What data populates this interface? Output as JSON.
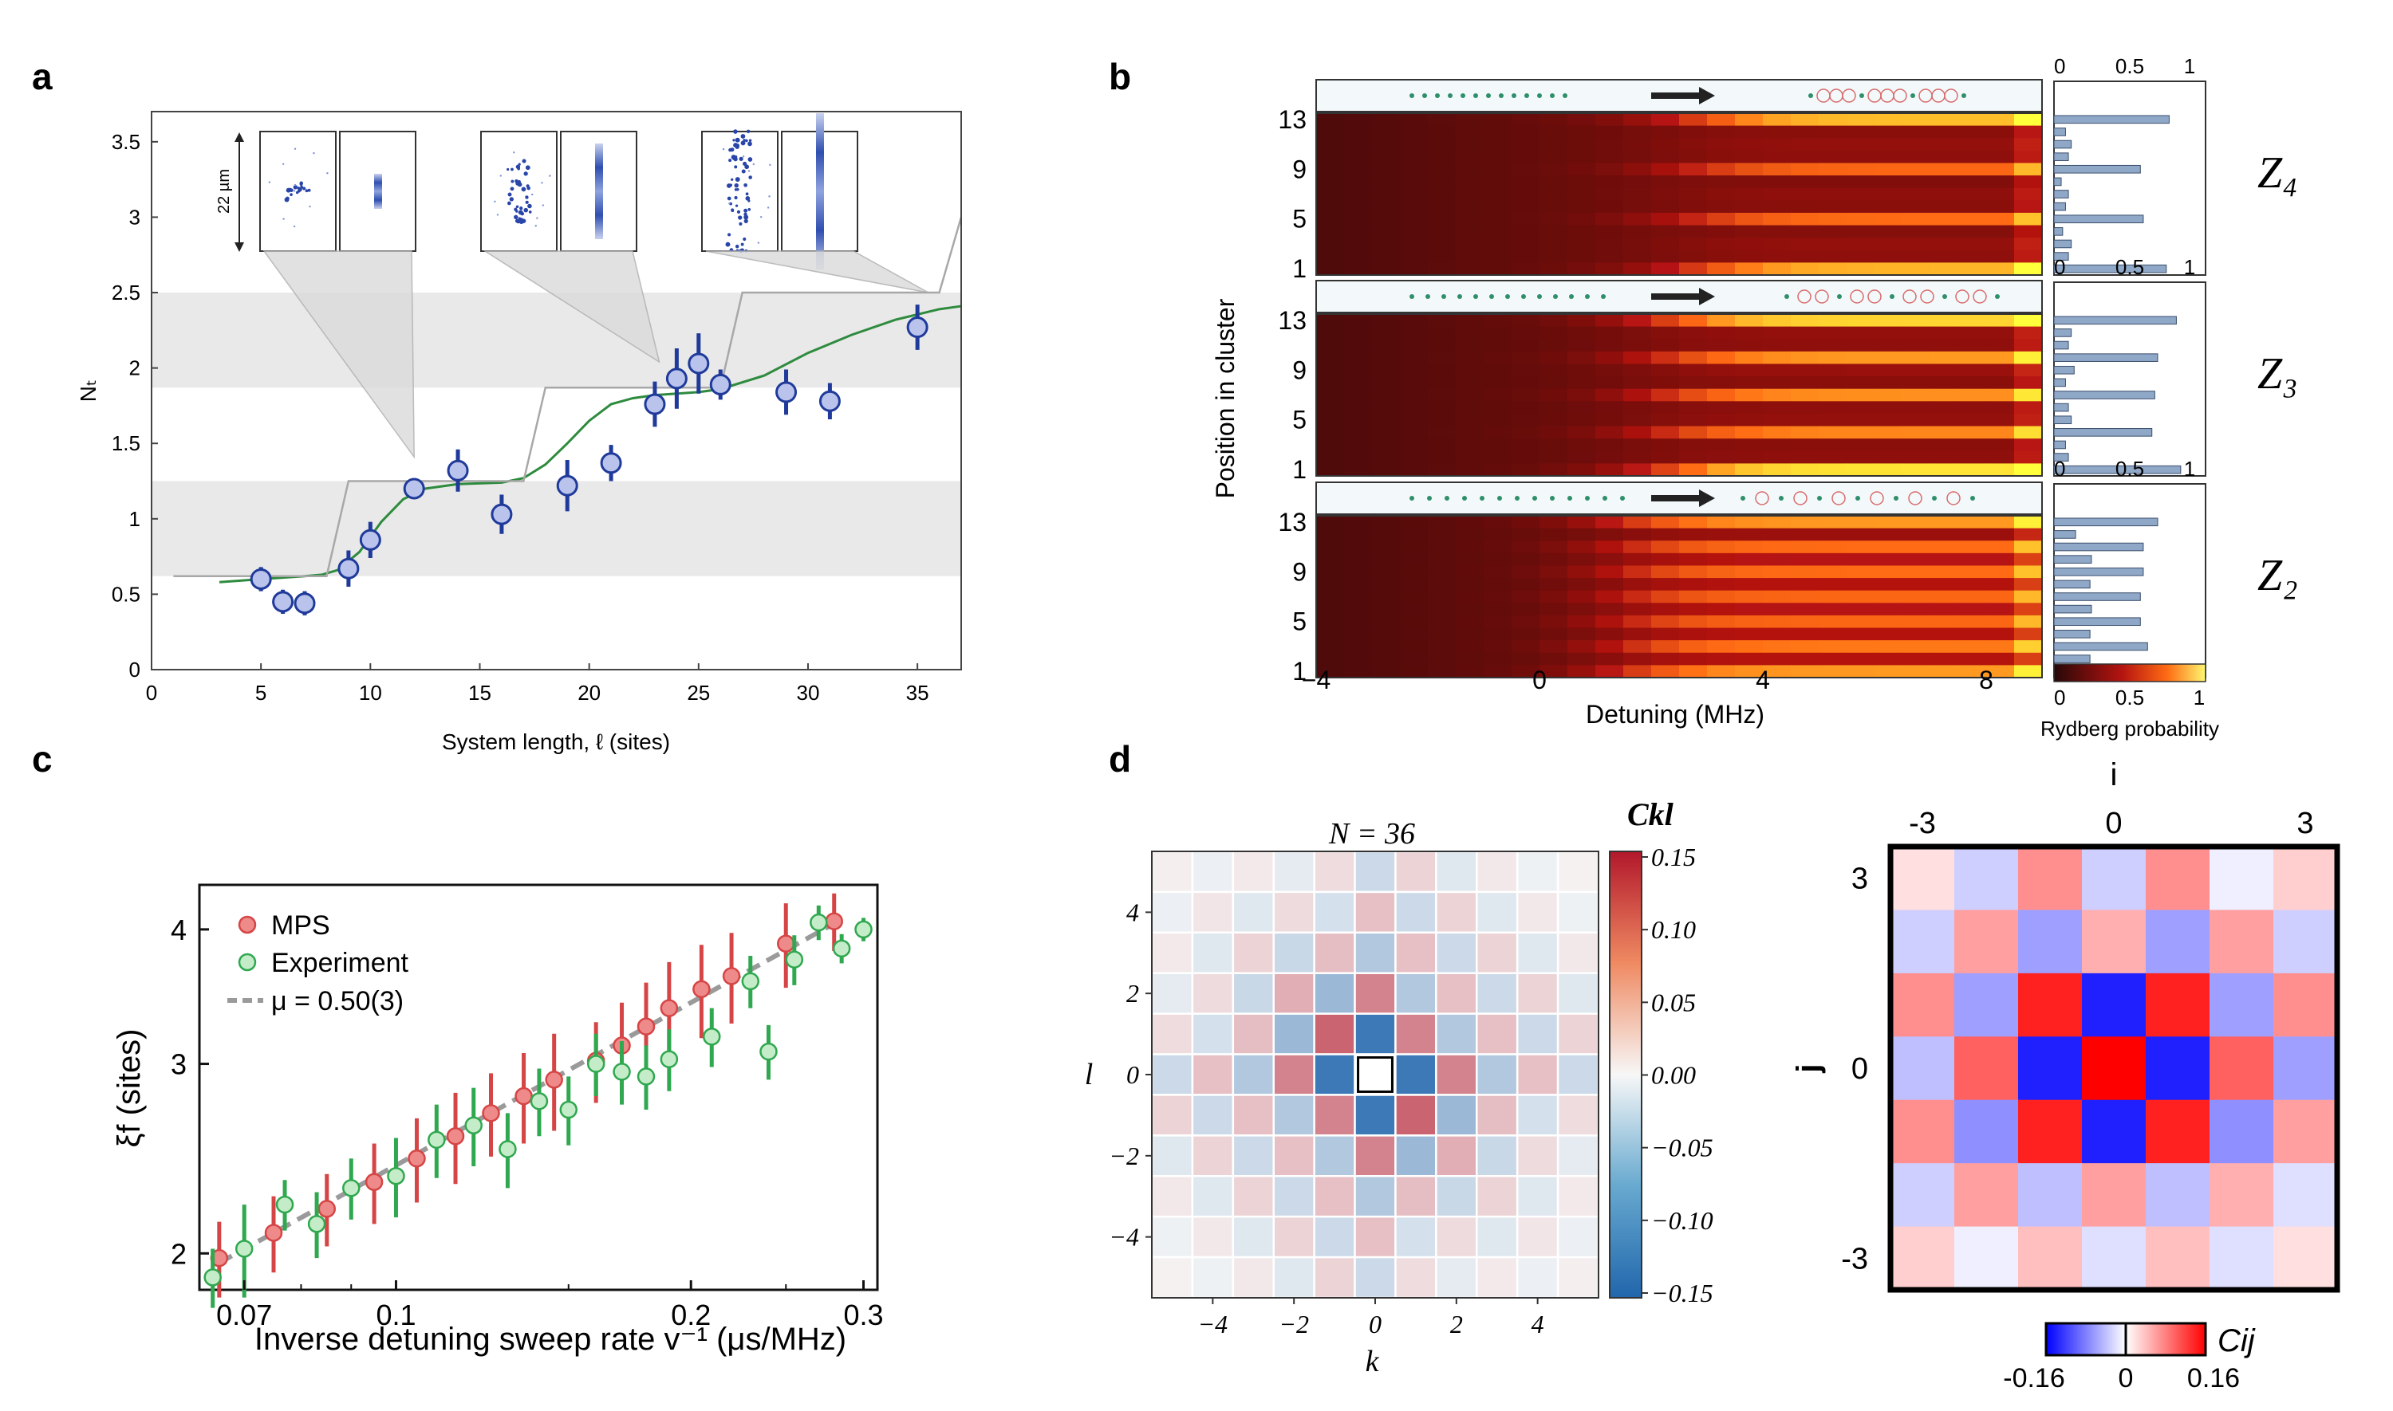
{
  "panel_labels": {
    "a": "a",
    "b": "b",
    "c": "c",
    "d": "d"
  },
  "chart_data": [
    {
      "id": "a",
      "type": "scatter",
      "xlabel": "System length, ℓ (sites)",
      "ylabel": "Nₜ",
      "xlim": [
        0,
        37
      ],
      "ylim": [
        0,
        3.7
      ],
      "xticks": [
        0,
        5,
        10,
        15,
        20,
        25,
        30,
        35
      ],
      "yticks": [
        0,
        0.5,
        1,
        1.5,
        2,
        2.5,
        3,
        3.5
      ],
      "inset_scale_label": "22 µm",
      "points": [
        {
          "x": 5,
          "y": 0.6,
          "err": 0.08
        },
        {
          "x": 6,
          "y": 0.45,
          "err": 0.08
        },
        {
          "x": 7,
          "y": 0.44,
          "err": 0.08
        },
        {
          "x": 9,
          "y": 0.67,
          "err": 0.12
        },
        {
          "x": 10,
          "y": 0.86,
          "err": 0.12
        },
        {
          "x": 12,
          "y": 1.2,
          "err": 0.05
        },
        {
          "x": 14,
          "y": 1.32,
          "err": 0.14
        },
        {
          "x": 16,
          "y": 1.03,
          "err": 0.13
        },
        {
          "x": 19,
          "y": 1.22,
          "err": 0.17
        },
        {
          "x": 21,
          "y": 1.37,
          "err": 0.12
        },
        {
          "x": 23,
          "y": 1.76,
          "err": 0.15
        },
        {
          "x": 24,
          "y": 1.93,
          "err": 0.2
        },
        {
          "x": 25,
          "y": 2.03,
          "err": 0.2
        },
        {
          "x": 26,
          "y": 1.89,
          "err": 0.1
        },
        {
          "x": 29,
          "y": 1.84,
          "err": 0.15
        },
        {
          "x": 31,
          "y": 1.78,
          "err": 0.12
        },
        {
          "x": 35,
          "y": 2.27,
          "err": 0.15
        }
      ],
      "fit_curve": {
        "x": [
          3.1,
          5,
          6,
          7,
          7.8,
          8.5,
          9.5,
          10.5,
          11.5,
          12.5,
          14,
          16,
          17,
          18,
          19,
          20,
          21,
          22,
          23,
          24,
          25,
          26,
          28,
          30,
          32,
          34,
          36,
          37
        ],
        "y": [
          0.58,
          0.6,
          0.61,
          0.62,
          0.63,
          0.66,
          0.78,
          0.98,
          1.13,
          1.2,
          1.23,
          1.24,
          1.27,
          1.36,
          1.5,
          1.65,
          1.76,
          1.8,
          1.82,
          1.83,
          1.84,
          1.86,
          1.95,
          2.1,
          2.22,
          2.32,
          2.39,
          2.41
        ]
      },
      "step_curve": {
        "x": [
          1,
          8,
          9,
          17,
          18,
          26,
          27,
          36,
          37
        ],
        "y": [
          0.62,
          0.62,
          1.25,
          1.25,
          1.87,
          1.87,
          2.5,
          2.5,
          3.0
        ]
      },
      "shaded_bands": [
        [
          0.62,
          1.25
        ],
        [
          1.87,
          2.5
        ]
      ]
    },
    {
      "id": "b",
      "type": "heatmap",
      "xlabel": "Detuning (MHz)",
      "ylabel": "Position in cluster",
      "xlim": [
        -4,
        9
      ],
      "xticks": [
        -4,
        0,
        4,
        8
      ],
      "yticks": [
        13,
        9,
        5,
        1
      ],
      "bar_ticks": [
        "0",
        "0.5",
        "1"
      ],
      "colorbar_label": "Rydberg probability",
      "colorbar_ticks": [
        "0",
        "0.5",
        "1"
      ],
      "rows": 13,
      "phases": [
        {
          "name": "Z₄",
          "period": 4,
          "transition": 2.7,
          "probabilities": [
            0.78,
            0.1,
            0.12,
            0.06,
            0.62,
            0.08,
            0.1,
            0.05,
            0.6,
            0.1,
            0.12,
            0.08,
            0.8
          ]
        },
        {
          "name": "Z₃",
          "period": 3,
          "transition": 2.2,
          "probabilities": [
            0.88,
            0.1,
            0.08,
            0.68,
            0.12,
            0.1,
            0.7,
            0.08,
            0.14,
            0.72,
            0.1,
            0.12,
            0.85
          ]
        },
        {
          "name": "Z₂",
          "period": 2,
          "transition": 1.5,
          "probabilities": [
            0.72,
            0.25,
            0.65,
            0.25,
            0.6,
            0.26,
            0.6,
            0.25,
            0.62,
            0.26,
            0.62,
            0.15,
            0.72
          ]
        }
      ]
    },
    {
      "id": "c",
      "type": "scatter",
      "xlabel": "Inverse detuning sweep rate v⁻¹ (μs/MHz)",
      "ylabel": "ξf (sites)",
      "xscale": "log",
      "yscale": "log",
      "xlim": [
        0.063,
        0.31
      ],
      "ylim": [
        1.85,
        4.4
      ],
      "xticks": [
        0.07,
        0.1,
        0.2,
        0.3
      ],
      "xtick_labels": [
        "0.07",
        "0.1",
        "0.2",
        "0.3"
      ],
      "yticks": [
        2,
        3,
        4
      ],
      "ytick_labels": [
        "2",
        "3",
        "4"
      ],
      "legend": [
        {
          "label": "MPS",
          "color": "#e26a6a"
        },
        {
          "label": "Experiment",
          "color": "#2fa84f"
        },
        {
          "label": "μ = 0.50(3)",
          "color": "#999999"
        }
      ],
      "fit": {
        "mu": 0.5,
        "x": [
          0.066,
          0.28
        ],
        "y": [
          1.96,
          4.05
        ]
      },
      "series": [
        {
          "name": "MPS",
          "color": "#d64545",
          "points": [
            {
              "x": 0.066,
              "y": 1.98,
              "err": 0.16
            },
            {
              "x": 0.075,
              "y": 2.09,
              "err": 0.17
            },
            {
              "x": 0.085,
              "y": 2.2,
              "err": 0.17
            },
            {
              "x": 0.095,
              "y": 2.33,
              "err": 0.2
            },
            {
              "x": 0.105,
              "y": 2.45,
              "err": 0.22
            },
            {
              "x": 0.115,
              "y": 2.57,
              "err": 0.25
            },
            {
              "x": 0.125,
              "y": 2.7,
              "err": 0.24
            },
            {
              "x": 0.135,
              "y": 2.8,
              "err": 0.27
            },
            {
              "x": 0.145,
              "y": 2.9,
              "err": 0.3
            },
            {
              "x": 0.16,
              "y": 3.02,
              "err": 0.26
            },
            {
              "x": 0.17,
              "y": 3.12,
              "err": 0.3
            },
            {
              "x": 0.18,
              "y": 3.25,
              "err": 0.32
            },
            {
              "x": 0.19,
              "y": 3.38,
              "err": 0.35
            },
            {
              "x": 0.205,
              "y": 3.52,
              "err": 0.35
            },
            {
              "x": 0.22,
              "y": 3.62,
              "err": 0.35
            },
            {
              "x": 0.25,
              "y": 3.88,
              "err": 0.35
            },
            {
              "x": 0.28,
              "y": 4.07,
              "err": 0.25
            }
          ]
        },
        {
          "name": "Experiment",
          "color": "#2fa84f",
          "points": [
            {
              "x": 0.065,
              "y": 1.9,
              "err": 0.12
            },
            {
              "x": 0.07,
              "y": 2.02,
              "err": 0.2
            },
            {
              "x": 0.077,
              "y": 2.22,
              "err": 0.12
            },
            {
              "x": 0.083,
              "y": 2.13,
              "err": 0.15
            },
            {
              "x": 0.09,
              "y": 2.3,
              "err": 0.15
            },
            {
              "x": 0.1,
              "y": 2.36,
              "err": 0.2
            },
            {
              "x": 0.11,
              "y": 2.55,
              "err": 0.2
            },
            {
              "x": 0.12,
              "y": 2.63,
              "err": 0.22
            },
            {
              "x": 0.13,
              "y": 2.5,
              "err": 0.2
            },
            {
              "x": 0.14,
              "y": 2.77,
              "err": 0.2
            },
            {
              "x": 0.15,
              "y": 2.72,
              "err": 0.2
            },
            {
              "x": 0.16,
              "y": 3.0,
              "err": 0.2
            },
            {
              "x": 0.17,
              "y": 2.95,
              "err": 0.2
            },
            {
              "x": 0.18,
              "y": 2.92,
              "err": 0.2
            },
            {
              "x": 0.19,
              "y": 3.03,
              "err": 0.2
            },
            {
              "x": 0.21,
              "y": 3.18,
              "err": 0.2
            },
            {
              "x": 0.23,
              "y": 3.58,
              "err": 0.2
            },
            {
              "x": 0.24,
              "y": 3.08,
              "err": 0.18
            },
            {
              "x": 0.255,
              "y": 3.75,
              "err": 0.2
            },
            {
              "x": 0.27,
              "y": 4.06,
              "err": 0.15
            },
            {
              "x": 0.285,
              "y": 3.84,
              "err": 0.12
            },
            {
              "x": 0.3,
              "y": 4.0,
              "err": 0.1
            }
          ]
        }
      ]
    },
    {
      "id": "d_left",
      "type": "heatmap",
      "title": "N = 36",
      "colorbar_label": "Ckl",
      "xlabel": "k",
      "ylabel": "l",
      "range": [
        -5,
        5
      ],
      "ticks": [
        -4,
        -2,
        0,
        2,
        4
      ],
      "colorbar_range": [
        -0.15,
        0.15
      ],
      "colorbar_ticks": [
        "0.15",
        "0.10",
        "0.05",
        "0.00",
        "−0.05",
        "−0.10",
        "−0.15"
      ]
    },
    {
      "id": "d_right",
      "type": "heatmap",
      "xlabel": "i",
      "ylabel": "j",
      "range": [
        -3,
        3
      ],
      "xticks": [
        "-3",
        "0",
        "3"
      ],
      "yticks": [
        "3",
        "0",
        "-3"
      ],
      "colorbar_label": "Cij",
      "colorbar_ticks": [
        "-0.16",
        "0",
        "0.16"
      ],
      "colorbar_range": [
        -0.16,
        0.16
      ]
    }
  ]
}
